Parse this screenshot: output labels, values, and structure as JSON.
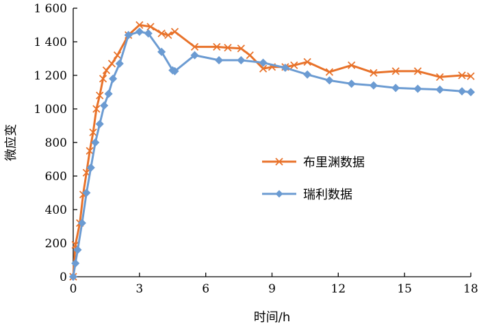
{
  "chart_data": {
    "type": "line",
    "xlabel": "时间/h",
    "ylabel": "微应变",
    "xlim": [
      0,
      18
    ],
    "ylim": [
      0,
      1600
    ],
    "xticks": [
      "0",
      "3",
      "6",
      "9",
      "12",
      "15",
      "18"
    ],
    "yticks": [
      "0",
      "200",
      "400",
      "600",
      "800",
      "1 000",
      "1 200",
      "1 400",
      "1 600"
    ],
    "grid": false,
    "legend_position": "center-right",
    "series": [
      {
        "name": "布里渊数据",
        "color": "#E8722A",
        "marker": "x",
        "points": [
          [
            0.0,
            0
          ],
          [
            0.1,
            190
          ],
          [
            0.3,
            320
          ],
          [
            0.45,
            490
          ],
          [
            0.6,
            620
          ],
          [
            0.75,
            750
          ],
          [
            0.9,
            860
          ],
          [
            1.05,
            1000
          ],
          [
            1.2,
            1080
          ],
          [
            1.35,
            1180
          ],
          [
            1.5,
            1230
          ],
          [
            1.75,
            1270
          ],
          [
            2.0,
            1320
          ],
          [
            2.5,
            1440
          ],
          [
            3.0,
            1500
          ],
          [
            3.5,
            1490
          ],
          [
            4.0,
            1450
          ],
          [
            4.3,
            1440
          ],
          [
            4.6,
            1460
          ],
          [
            5.5,
            1370
          ],
          [
            6.5,
            1370
          ],
          [
            7.0,
            1365
          ],
          [
            7.6,
            1360
          ],
          [
            8.0,
            1320
          ],
          [
            8.6,
            1240
          ],
          [
            9.0,
            1250
          ],
          [
            9.6,
            1250
          ],
          [
            10.0,
            1260
          ],
          [
            10.6,
            1280
          ],
          [
            11.6,
            1220
          ],
          [
            12.6,
            1260
          ],
          [
            13.6,
            1215
          ],
          [
            14.6,
            1225
          ],
          [
            15.6,
            1225
          ],
          [
            16.6,
            1190
          ],
          [
            17.6,
            1200
          ],
          [
            18.0,
            1195
          ]
        ]
      },
      {
        "name": "瑞利数据",
        "color": "#6B9BD2",
        "marker": "diamond",
        "points": [
          [
            0.0,
            0
          ],
          [
            0.1,
            80
          ],
          [
            0.2,
            160
          ],
          [
            0.4,
            320
          ],
          [
            0.6,
            500
          ],
          [
            0.8,
            650
          ],
          [
            1.0,
            800
          ],
          [
            1.2,
            910
          ],
          [
            1.4,
            1020
          ],
          [
            1.6,
            1090
          ],
          [
            1.8,
            1180
          ],
          [
            2.1,
            1270
          ],
          [
            2.5,
            1440
          ],
          [
            3.0,
            1460
          ],
          [
            3.4,
            1450
          ],
          [
            4.0,
            1340
          ],
          [
            4.5,
            1230
          ],
          [
            4.6,
            1225
          ],
          [
            5.5,
            1320
          ],
          [
            6.6,
            1290
          ],
          [
            7.6,
            1290
          ],
          [
            8.6,
            1275
          ],
          [
            9.6,
            1245
          ],
          [
            10.6,
            1205
          ],
          [
            11.6,
            1170
          ],
          [
            12.6,
            1150
          ],
          [
            13.6,
            1140
          ],
          [
            14.6,
            1125
          ],
          [
            15.6,
            1120
          ],
          [
            16.6,
            1115
          ],
          [
            17.6,
            1105
          ],
          [
            18.0,
            1100
          ]
        ]
      }
    ]
  }
}
